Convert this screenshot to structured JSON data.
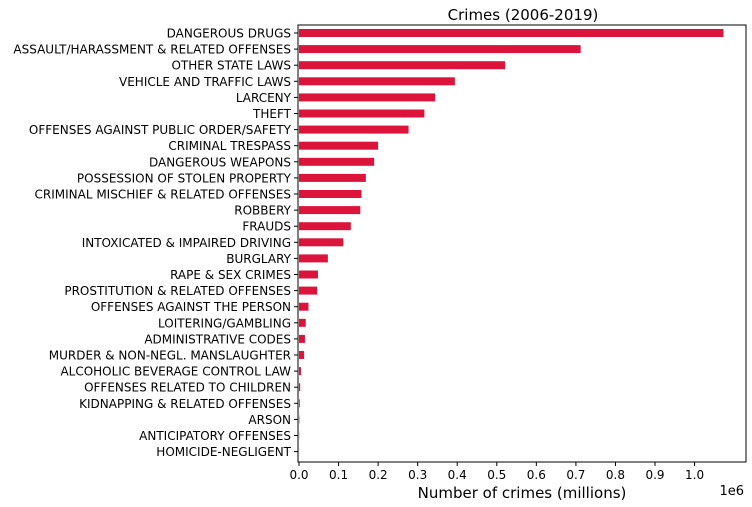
{
  "chart_data": {
    "type": "bar",
    "orientation": "horizontal",
    "title": "Crimes (2006-2019)",
    "xlabel": "Number of crimes (millions)",
    "ylabel": "",
    "x_offset_label": "1e6",
    "bar_color": "#dc143c",
    "xlim": [
      0,
      1.13
    ],
    "xticks": [
      "0.0",
      "0.1",
      "0.2",
      "0.3",
      "0.4",
      "0.5",
      "0.6",
      "0.7",
      "0.8",
      "0.9",
      "1.0"
    ],
    "grid": false,
    "legend": "none",
    "categories": [
      "DANGEROUS DRUGS",
      "ASSAULT/HARASSMENT & RELATED OFFENSES",
      "OTHER STATE LAWS",
      "VEHICLE AND TRAFFIC LAWS",
      "LARCENY",
      "THEFT",
      "OFFENSES AGAINST PUBLIC ORDER/SAFETY",
      "CRIMINAL TRESPASS",
      "DANGEROUS WEAPONS",
      "POSSESSION OF STOLEN PROPERTY",
      "CRIMINAL MISCHIEF & RELATED OFFENSES",
      "ROBBERY",
      "FRAUDS",
      "INTOXICATED & IMPAIRED DRIVING",
      "BURGLARY",
      "RAPE & SEX CRIMES",
      "PROSTITUTION & RELATED OFFENSES",
      "OFFENSES AGAINST THE PERSON",
      "LOITERING/GAMBLING",
      "ADMINISTRATIVE CODES",
      "MURDER & NON-NEGL. MANSLAUGHTER",
      "ALCOHOLIC BEVERAGE CONTROL LAW",
      "OFFENSES RELATED TO CHILDREN",
      "KIDNAPPING & RELATED OFFENSES",
      "ARSON",
      "ANTICIPATORY OFFENSES",
      "HOMICIDE-NEGLIGENT"
    ],
    "values": [
      1.073,
      0.712,
      0.521,
      0.394,
      0.344,
      0.317,
      0.277,
      0.2,
      0.19,
      0.169,
      0.158,
      0.155,
      0.131,
      0.112,
      0.073,
      0.048,
      0.046,
      0.024,
      0.017,
      0.015,
      0.013,
      0.005,
      0.003,
      0.002,
      0.001,
      0.0005,
      0.0002
    ]
  }
}
